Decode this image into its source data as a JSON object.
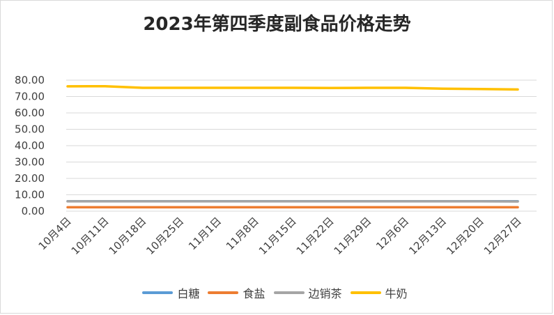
{
  "chart_data": {
    "type": "line",
    "title": "2023年第四季度副食品价格走势",
    "xlabel": "",
    "ylabel": "",
    "categories": [
      "10月4日",
      "10月11日",
      "10月18日",
      "10月25日",
      "11月1日",
      "11月8日",
      "11月15日",
      "11月22日",
      "11月29日",
      "12月6日",
      "12月13日",
      "12月20日",
      "12月27日"
    ],
    "ylim": [
      0,
      80
    ],
    "yticks": [
      "0.00",
      "10.00",
      "20.00",
      "30.00",
      "40.00",
      "50.00",
      "60.00",
      "70.00",
      "80.00"
    ],
    "grid": true,
    "legend_position": "bottom",
    "series": [
      {
        "name": "白糖",
        "color": "#5B9BD5",
        "values": [
          6.1,
          6.1,
          6.1,
          6.1,
          6.1,
          6.1,
          6.1,
          6.1,
          6.1,
          6.1,
          6.1,
          6.1,
          6.1
        ]
      },
      {
        "name": "食盐",
        "color": "#ED7D31",
        "values": [
          2.4,
          2.4,
          2.4,
          2.4,
          2.4,
          2.4,
          2.4,
          2.4,
          2.4,
          2.4,
          2.4,
          2.4,
          2.4
        ]
      },
      {
        "name": "边销茶",
        "color": "#A5A5A5",
        "values": [
          6.0,
          6.0,
          6.0,
          6.0,
          6.0,
          6.0,
          6.0,
          6.0,
          6.0,
          6.0,
          6.0,
          6.0,
          5.9
        ]
      },
      {
        "name": "牛奶",
        "color": "#FFC000",
        "values": [
          76.2,
          76.3,
          75.3,
          75.3,
          75.3,
          75.3,
          75.3,
          75.2,
          75.3,
          75.3,
          74.8,
          74.6,
          74.3
        ]
      }
    ]
  }
}
